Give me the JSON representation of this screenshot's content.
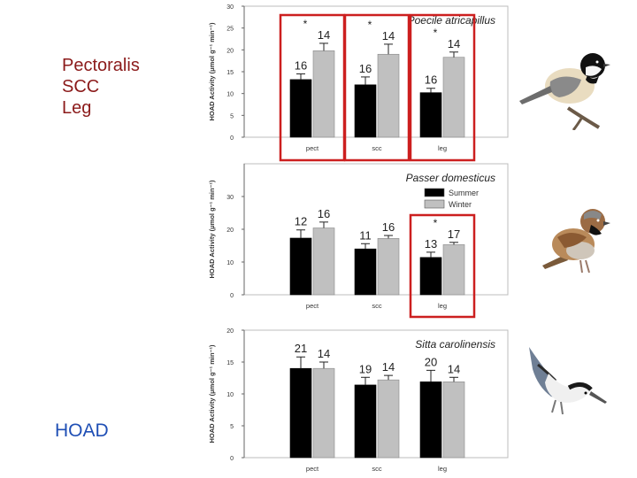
{
  "side_labels": {
    "muscles": [
      "Pectoralis",
      "SCC",
      "Leg"
    ],
    "enzyme": "HOAD"
  },
  "colors": {
    "summer": "#000000",
    "winter": "#c0c0c0",
    "highlight": "#cc1f1f",
    "muscle_text": "#8b1a1a",
    "enzyme_text": "#1f4fb5"
  },
  "chart_data": [
    {
      "type": "bar",
      "title": "Poecile atricapillus",
      "ylabel": "HOAD Activity (μmol g⁻¹ min⁻¹)",
      "categories": [
        "pect",
        "scc",
        "leg"
      ],
      "ylim": [
        0,
        30
      ],
      "yticks": [
        0,
        5,
        10,
        15,
        20,
        25,
        30
      ],
      "series": [
        {
          "name": "Summer",
          "values": [
            13.2,
            12.0,
            10.2
          ],
          "errors": [
            1.3,
            1.8,
            1.0
          ],
          "n": [
            "16",
            "16",
            "16"
          ]
        },
        {
          "name": "Winter",
          "values": [
            19.8,
            19.0,
            18.3
          ],
          "errors": [
            1.7,
            2.3,
            1.2
          ],
          "n": [
            "14",
            "14",
            "14"
          ]
        }
      ],
      "significant": [
        "*",
        "*",
        "*"
      ],
      "highlighted": [
        "pect",
        "scc",
        "leg"
      ],
      "legend": false,
      "bird_icon": "chickadee-icon"
    },
    {
      "type": "bar",
      "title": "Passer domesticus",
      "ylabel": "HOAD Activity (μmol g⁻¹ min⁻¹)",
      "categories": [
        "pect",
        "scc",
        "leg"
      ],
      "ylim": [
        0,
        40
      ],
      "yticks": [
        0,
        10,
        20,
        30
      ],
      "series": [
        {
          "name": "Summer",
          "values": [
            17.3,
            14.0,
            11.4
          ],
          "errors": [
            2.5,
            1.6,
            1.6
          ],
          "n": [
            "12",
            "11",
            "13"
          ]
        },
        {
          "name": "Winter",
          "values": [
            20.4,
            17.2,
            15.3
          ],
          "errors": [
            1.8,
            0.9,
            0.7
          ],
          "n": [
            "16",
            "16",
            "17"
          ]
        }
      ],
      "significant": [
        "",
        "",
        "*"
      ],
      "highlighted": [
        "leg"
      ],
      "legend": true,
      "legend_position": "top-right",
      "bird_icon": "sparrow-icon"
    },
    {
      "type": "bar",
      "title": "Sitta carolinensis",
      "ylabel": "HOAD Activity (μmol g⁻¹ min⁻¹)",
      "categories": [
        "pect",
        "scc",
        "leg"
      ],
      "ylim": [
        0,
        20
      ],
      "yticks": [
        0,
        5,
        10,
        15,
        20
      ],
      "series": [
        {
          "name": "Summer",
          "values": [
            14.0,
            11.4,
            11.9
          ],
          "errors": [
            1.8,
            1.2,
            1.8
          ],
          "n": [
            "21",
            "19",
            "20"
          ]
        },
        {
          "name": "Winter",
          "values": [
            14.0,
            12.2,
            11.9
          ],
          "errors": [
            1.0,
            0.7,
            0.7
          ],
          "n": [
            "14",
            "14",
            "14"
          ]
        }
      ],
      "significant": [
        "",
        "",
        ""
      ],
      "highlighted": [],
      "legend": false,
      "bird_icon": "nuthatch-icon"
    }
  ]
}
